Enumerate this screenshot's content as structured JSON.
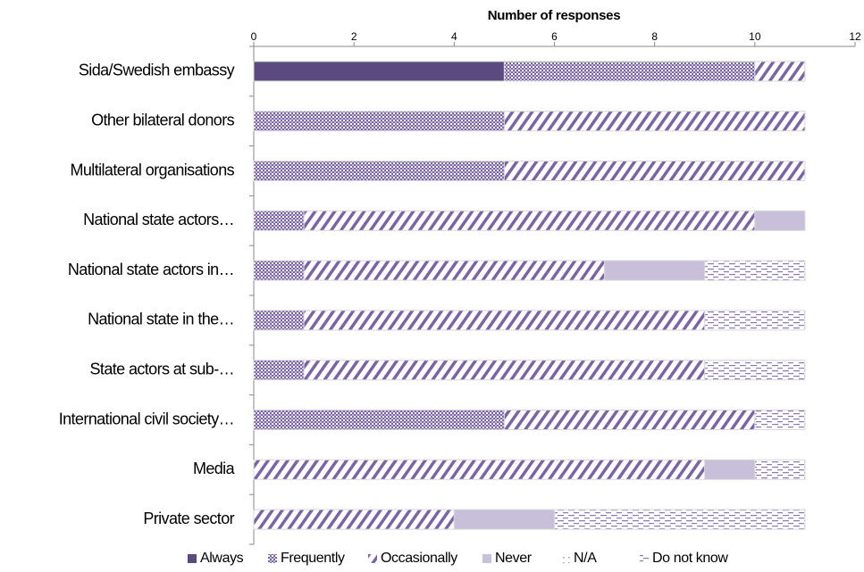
{
  "chart_data": {
    "type": "stacked-bar-horizontal",
    "title": "Number of responses",
    "categories": [
      "Sida/Swedish embassy",
      "Other bilateral donors",
      "Multilateral organisations",
      "National state actors…",
      "National state actors in…",
      "National state in the…",
      "State actors at sub-…",
      "International civil society…",
      "Media",
      "Private sector"
    ],
    "series": [
      {
        "name": "Always",
        "color": "#5b4a80",
        "pattern": "solid",
        "values": [
          5,
          0,
          0,
          0,
          0,
          0,
          0,
          0,
          0,
          0
        ]
      },
      {
        "name": "Frequently",
        "color": "#7a64a6",
        "pattern": "checker",
        "values": [
          5,
          5,
          5,
          1,
          1,
          1,
          1,
          5,
          0,
          0
        ]
      },
      {
        "name": "Occasionally",
        "color": "#7a64a6",
        "pattern": "diagonal",
        "values": [
          1,
          6,
          6,
          9,
          6,
          8,
          8,
          5,
          9,
          4
        ]
      },
      {
        "name": "Never",
        "color": "#c8bfda",
        "pattern": "solid",
        "values": [
          0,
          0,
          0,
          1,
          2,
          0,
          0,
          0,
          1,
          2
        ]
      },
      {
        "name": "N/A",
        "color": "#9d8dc0",
        "pattern": "dotted",
        "values": [
          0,
          0,
          0,
          0,
          0,
          0,
          0,
          0,
          0,
          0
        ]
      },
      {
        "name": "Do not know",
        "color": "#8c79b6",
        "pattern": "dashed",
        "values": [
          0,
          0,
          0,
          0,
          2,
          2,
          2,
          1,
          1,
          5
        ]
      }
    ],
    "xlim": [
      0,
      12
    ],
    "xticks": [
      0,
      2,
      4,
      6,
      8,
      10,
      12
    ],
    "legend": "bottom"
  }
}
